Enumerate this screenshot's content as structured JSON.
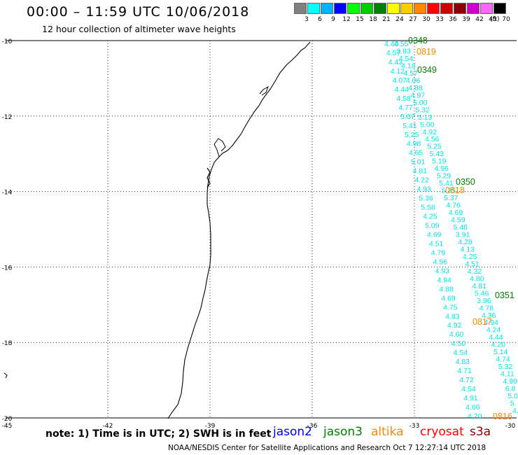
{
  "header": {
    "title": "00:00 – 11:59 UTC 10/06/2018",
    "subtitle": "12 hour collection of altimeter wave heights"
  },
  "scale": {
    "unit": "(ft)",
    "bins": [
      {
        "label": "3",
        "color": "#808080"
      },
      {
        "label": "6",
        "color": "#00ffff"
      },
      {
        "label": "9",
        "color": "#00b2ff"
      },
      {
        "label": "12",
        "color": "#0000ff"
      },
      {
        "label": "15",
        "color": "#00ff00"
      },
      {
        "label": "18",
        "color": "#00cc00"
      },
      {
        "label": "21",
        "color": "#008000"
      },
      {
        "label": "24",
        "color": "#ffff00"
      },
      {
        "label": "27",
        "color": "#ffcc00"
      },
      {
        "label": "30",
        "color": "#ff8800"
      },
      {
        "label": "33",
        "color": "#ff0000"
      },
      {
        "label": "36",
        "color": "#cc0000"
      },
      {
        "label": "39",
        "color": "#880000"
      },
      {
        "label": "42",
        "color": "#cc00cc"
      },
      {
        "label": "45",
        "color": "#ff66ff"
      },
      {
        "label": "70",
        "color": "#000000"
      }
    ]
  },
  "axes": {
    "lat_labels": [
      "-10",
      "-12",
      "-14",
      "-16",
      "-18",
      "-20"
    ],
    "lon_labels": [
      "-45",
      "-42",
      "-39",
      "-36",
      "-33",
      "-30"
    ]
  },
  "track_times": [
    {
      "label": "0348",
      "color": "#008000"
    },
    {
      "label": "0819",
      "color": "#ff8800"
    },
    {
      "label": "0349",
      "color": "#008000"
    },
    {
      "label": "0350",
      "color": "#008000"
    },
    {
      "label": "0818",
      "color": "#ff8800"
    },
    {
      "label": "0351",
      "color": "#008000"
    },
    {
      "label": "0817",
      "color": "#ff8800"
    },
    {
      "label": "0816",
      "color": "#ff8800"
    }
  ],
  "track_a_values": [
    "4.55",
    "3.93",
    "4.54",
    "4.18",
    "4.57",
    "4.06",
    "4.88",
    "4.97",
    "5.00",
    "5.32",
    "5.13",
    "5.00",
    "4.92",
    "4.56",
    "5.25",
    "5.43",
    "5.19",
    "4.96",
    "5.29",
    "5.41",
    "5.35",
    "5.37",
    "4.76",
    "4.69",
    "4.59",
    "5.48",
    "3.91",
    "4.28",
    "4.13",
    "4.25",
    "4.51",
    "4.32",
    "4.80",
    "4.81",
    "5.46",
    "3.96",
    "4.78",
    "4.36",
    "4.94",
    "4.24",
    "4.44",
    "4.20",
    "5.14",
    "4.74",
    "5.32",
    "4.11",
    "4.99",
    "6.8",
    "5.0",
    "5.",
    "4."
  ],
  "track_b_values": [
    "4.40",
    "4.57",
    "4.43",
    "4.12",
    "4.07",
    "4.44",
    "4.58",
    "4.77",
    "5.07",
    "5.41",
    "5.25",
    "4.98",
    "4.65",
    "5.01",
    "4.81",
    "4.22",
    "4.93",
    "5.36",
    "5.58",
    "4.25",
    "5.09",
    "4.69",
    "4.51",
    "4.79",
    "4.96",
    "4.93",
    "4.94",
    "4.88",
    "4.69",
    "4.75",
    "4.83",
    "4.92",
    "4.60",
    "4.50",
    "4.54",
    "4.83",
    "4.71",
    "4.72",
    "4.54",
    "4.91",
    "4.66",
    "4.70"
  ],
  "note": "note: 1) Time is in UTC; 2) SWH is in feet",
  "satellites": [
    {
      "label": "jason2",
      "color": "#0000ff"
    },
    {
      "label": "jason3",
      "color": "#008000"
    },
    {
      "label": "altika",
      "color": "#ff8800"
    },
    {
      "label": "cryosat",
      "color": "#ff0000"
    },
    {
      "label": "s3a",
      "color": "#880000"
    }
  ],
  "footer": "NOAA/NESDIS Center for Satellite Applications and Research   Oct  7 12:27:14 UTC 2018",
  "colors": {
    "track": "#00e5e5",
    "coast": "#000000"
  }
}
